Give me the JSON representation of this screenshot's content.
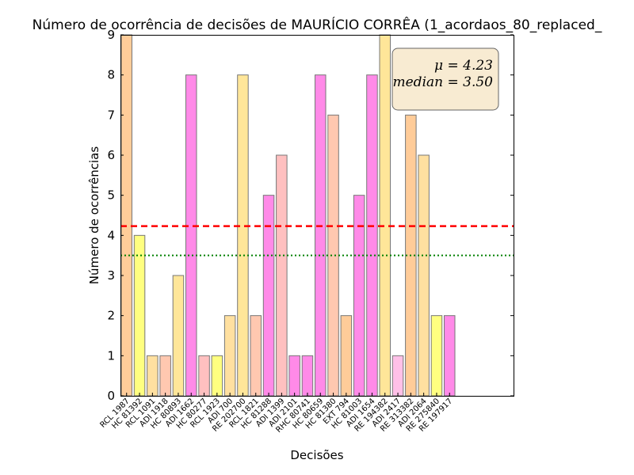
{
  "chart_data": {
    "type": "bar",
    "title": "Número de ocorrência de decisões de MAURÍCIO CORRÊA (1_acordaos_80_replaced_",
    "xlabel": "Decisões",
    "ylabel": "Número de ocorrências",
    "ylim": [
      0,
      9
    ],
    "yticks": [
      "0",
      "1",
      "2",
      "3",
      "4",
      "5",
      "6",
      "7",
      "8",
      "9"
    ],
    "grid": false,
    "categories": [
      "RCL 1987",
      "HC 81392",
      "RCL 1091",
      "ADI 1918",
      "HC 80893",
      "ADI 1662",
      "HC 80277",
      "RCL 1923",
      "ADI 700",
      "RE 202700",
      "RCL 1821",
      "HC 81288",
      "ADI 1399",
      "ADI 2101",
      "RHC 80741",
      "HC 80659",
      "HC 81380",
      "EXT 794",
      "HC 81003",
      "ADI 1654",
      "RE 194382",
      "ADI 2417",
      "RE 313382",
      "ADI 2064",
      "RE 275840",
      "RE 197917"
    ],
    "values": [
      9,
      4,
      1,
      1,
      3,
      8,
      1,
      1,
      2,
      8,
      2,
      5,
      6,
      1,
      1,
      8,
      7,
      2,
      5,
      8,
      9,
      1,
      7,
      6,
      2,
      2
    ],
    "bar_colors": [
      "#ffcc99",
      "#ffff80",
      "#ffe0a0",
      "#ffc8b0",
      "#ffe699",
      "#ff8ae8",
      "#ffc0c0",
      "#ffff80",
      "#ffe0a0",
      "#ffe699",
      "#ffc8b0",
      "#ff8ae8",
      "#ffc0c0",
      "#ff8ae8",
      "#ff8ae8",
      "#ff8ae8",
      "#ffc8b0",
      "#ffcc99",
      "#ff8ae8",
      "#ff8ae8",
      "#ffe699",
      "#ffc0e8",
      "#ffcc99",
      "#ffe0a0",
      "#ffff80",
      "#ff8ae8"
    ],
    "mean_line": {
      "value": 4.23,
      "color": "#ff0000",
      "style": "dashed"
    },
    "median_line": {
      "value": 3.5,
      "color": "#008000",
      "style": "dotted"
    },
    "annotation": {
      "mean_text": "μ = 4.23",
      "median_text": "median = 3.50",
      "position": "top-right"
    }
  }
}
